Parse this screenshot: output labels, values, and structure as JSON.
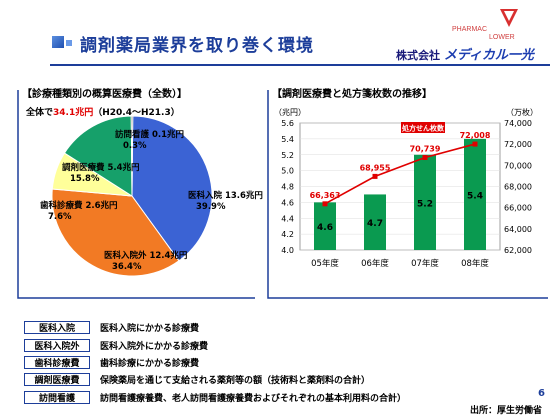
{
  "header": {
    "title": "調剤薬局業界を取り巻く環境",
    "logo_line1": "PHARMAC",
    "logo_line2": "LOWER",
    "company_prefix": "株式会社",
    "company_brand": "メディカル一光"
  },
  "left_section": {
    "title": "【診療種類別の概算医療費（全数）】",
    "total_prefix": "全体で",
    "total_value": "34.1兆円",
    "total_suffix": "（H20.4～H21.3）"
  },
  "right_section": {
    "title": "【調剤医療費と処方箋枚数の推移】"
  },
  "chart_data": [
    {
      "type": "pie",
      "slices": [
        {
          "name": "医科入院",
          "value": 13.6,
          "value_label": "13.6兆円",
          "percent": "39.9%",
          "color": "#3b63d4"
        },
        {
          "name": "医科入院外",
          "value": 12.4,
          "value_label": "12.4兆円",
          "percent": "36.4%",
          "color": "#f27a24"
        },
        {
          "name": "歯科診療費",
          "value": 2.6,
          "value_label": "2.6兆円",
          "percent": "7.6%",
          "color": "#ffff9a"
        },
        {
          "name": "調剤医療費",
          "value": 5.4,
          "value_label": "5.4兆円",
          "percent": "15.8%",
          "color": "#16a06a"
        },
        {
          "name": "訪問看護",
          "value": 0.1,
          "value_label": "0.1兆円",
          "percent": "0.3%",
          "color": "#3a3a3a"
        }
      ]
    },
    {
      "type": "bar",
      "categories": [
        "05年度",
        "06年度",
        "07年度",
        "08年度"
      ],
      "bar_series": {
        "values": [
          4.6,
          4.7,
          5.2,
          5.4
        ],
        "color": "#0a9a50"
      },
      "line_series": {
        "name": "処方せん枚数",
        "values": [
          66363,
          68955,
          70739,
          72008
        ],
        "labels": [
          "66,363",
          "68,955",
          "70,739",
          "72,008"
        ],
        "color": "#e00000"
      },
      "y_left": {
        "unit": "（兆円）",
        "min": 4.0,
        "max": 5.6,
        "ticks": [
          "4.0",
          "4.2",
          "4.4",
          "4.6",
          "4.8",
          "5.0",
          "5.2",
          "5.4",
          "5.6"
        ]
      },
      "y_right": {
        "unit": "（万枚）",
        "min": 62000,
        "max": 74000,
        "ticks": [
          "62,000",
          "64,000",
          "66,000",
          "68,000",
          "70,000",
          "72,000",
          "74,000"
        ]
      }
    }
  ],
  "legend": [
    {
      "key": "医科入院",
      "desc": "医科入院にかかる診療費"
    },
    {
      "key": "医科入院外",
      "desc": "医科入院外にかかる診療費"
    },
    {
      "key": "歯科診療費",
      "desc": "歯科診療にかかる診療費"
    },
    {
      "key": "調剤医療費",
      "desc": "保険薬局を通じて支給される薬剤等の額（技術料と薬剤料の合計）"
    },
    {
      "key": "訪問看護",
      "desc": "訪問看護療養費、老人訪問看護療養費およびそれぞれの基本利用料の合計）"
    }
  ],
  "footer": {
    "source": "出所：厚生労働省",
    "page": "6"
  }
}
